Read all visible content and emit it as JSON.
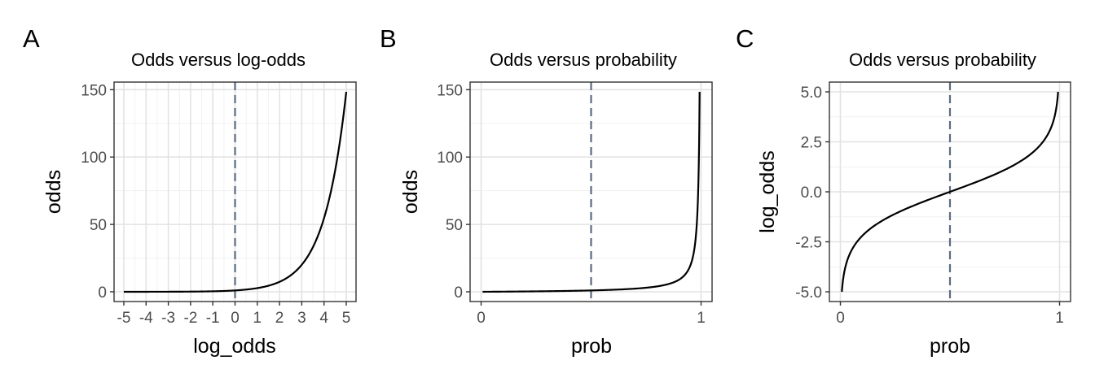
{
  "colors": {
    "reference_line": "#5b6b80",
    "curve": "#000000"
  },
  "panels": [
    {
      "tag": "A",
      "title": "Odds versus log-odds",
      "xlabel": "log_odds",
      "ylabel": "odds"
    },
    {
      "tag": "B",
      "title": "Odds versus probability",
      "xlabel": "prob",
      "ylabel": "odds"
    },
    {
      "tag": "C",
      "title": "Odds versus probability",
      "xlabel": "prob",
      "ylabel": "log_odds"
    }
  ],
  "chart_data": [
    {
      "type": "line",
      "title": "Odds versus log-odds",
      "xlabel": "log_odds",
      "ylabel": "odds",
      "x": [
        -5,
        -4,
        -3,
        -2,
        -1,
        0,
        1,
        2,
        3,
        4,
        5
      ],
      "series": [
        {
          "values": [
            0.0067,
            0.018,
            0.05,
            0.135,
            0.368,
            1,
            2.72,
            7.39,
            20.09,
            54.6,
            148.4
          ]
        }
      ],
      "xlim": [
        -5,
        5
      ],
      "ylim": [
        0,
        148.4
      ],
      "xticks": [
        -5,
        -4,
        -3,
        -2,
        -1,
        0,
        1,
        2,
        3,
        4,
        5
      ],
      "xtick_labels": [
        "-5",
        "-4",
        "-3",
        "-2",
        "-1",
        "0",
        "1",
        "2",
        "3",
        "4",
        "5"
      ],
      "yticks": [
        0,
        50,
        100,
        150
      ],
      "ytick_labels": [
        "0",
        "50",
        "100",
        "150"
      ],
      "reference_line": {
        "axis": "x",
        "value": 0,
        "style": "dashed"
      },
      "grid": true
    },
    {
      "type": "line",
      "title": "Odds versus probability",
      "xlabel": "prob",
      "ylabel": "odds",
      "x": [
        0.0067,
        0.1,
        0.2,
        0.3,
        0.4,
        0.5,
        0.6,
        0.7,
        0.8,
        0.9,
        0.95,
        0.98,
        0.99,
        0.9933
      ],
      "series": [
        {
          "values": [
            0.0067,
            0.111,
            0.25,
            0.429,
            0.667,
            1,
            1.5,
            2.33,
            4,
            9,
            19,
            49,
            99,
            148.4
          ]
        }
      ],
      "xlim": [
        0,
        1
      ],
      "ylim": [
        0,
        148.4
      ],
      "xticks": [
        0,
        1
      ],
      "xtick_labels": [
        "0",
        "1"
      ],
      "yticks": [
        0,
        50,
        100,
        150
      ],
      "ytick_labels": [
        "0",
        "50",
        "100",
        "150"
      ],
      "reference_line": {
        "axis": "x",
        "value": 0.5,
        "style": "dashed"
      },
      "grid": true
    },
    {
      "type": "line",
      "title": "Odds versus probability",
      "xlabel": "prob",
      "ylabel": "log_odds",
      "x": [
        0.0067,
        0.05,
        0.1,
        0.2,
        0.3,
        0.4,
        0.5,
        0.6,
        0.7,
        0.8,
        0.9,
        0.95,
        0.9933
      ],
      "series": [
        {
          "values": [
            -5,
            -2.94,
            -2.2,
            -1.39,
            -0.85,
            -0.41,
            0,
            0.41,
            0.85,
            1.39,
            2.2,
            2.94,
            5
          ]
        }
      ],
      "xlim": [
        0,
        1
      ],
      "ylim": [
        -5,
        5
      ],
      "xticks": [
        0,
        1
      ],
      "xtick_labels": [
        "0",
        "1"
      ],
      "yticks": [
        -5,
        -2.5,
        0,
        2.5,
        5
      ],
      "ytick_labels": [
        "-5.0",
        "-2.5",
        "0.0",
        "2.5",
        "5.0"
      ],
      "reference_line": {
        "axis": "x",
        "value": 0.5,
        "style": "dashed"
      },
      "grid": true
    }
  ]
}
